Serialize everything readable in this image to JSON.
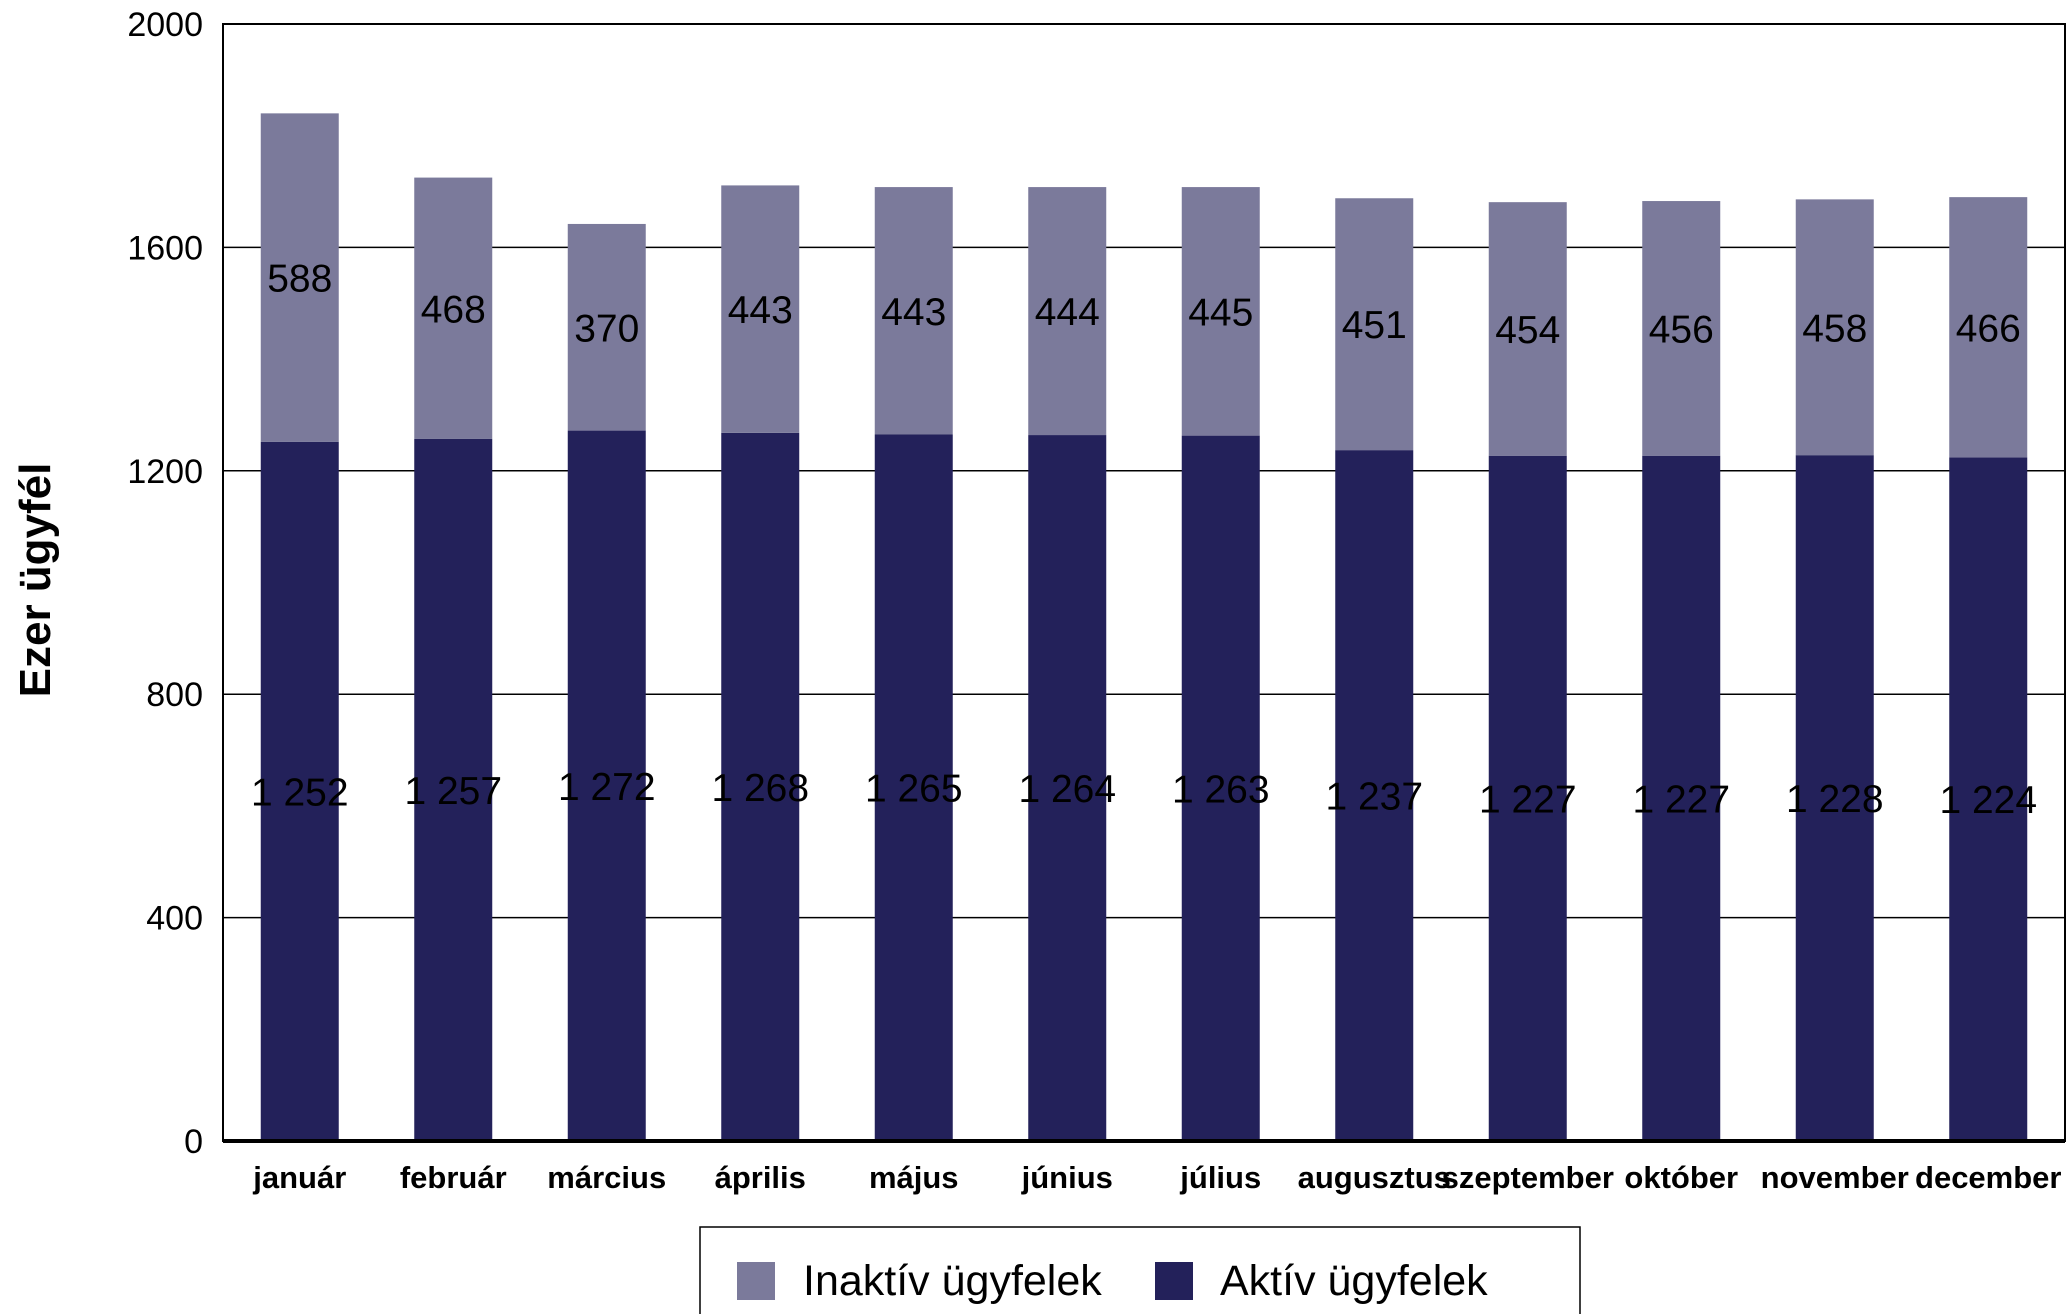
{
  "chart_data": {
    "type": "bar",
    "stacked": true,
    "categories": [
      "január",
      "február",
      "március",
      "április",
      "május",
      "június",
      "július",
      "augusztus",
      "szeptember",
      "október",
      "november",
      "december"
    ],
    "series": [
      {
        "name": "Aktív ügyfelek",
        "color": "#23215a",
        "values": [
          1252,
          1257,
          1272,
          1268,
          1265,
          1264,
          1263,
          1237,
          1227,
          1227,
          1228,
          1224
        ],
        "labels": [
          "1 252",
          "1 257",
          "1 272",
          "1 268",
          "1 265",
          "1 264",
          "1 263",
          "1 237",
          "1 227",
          "1 227",
          "1 228",
          "1 224"
        ]
      },
      {
        "name": "Inaktív ügyfelek",
        "color": "#7b7a9b",
        "values": [
          588,
          468,
          370,
          443,
          443,
          444,
          445,
          451,
          454,
          456,
          458,
          466
        ],
        "labels": [
          "588",
          "468",
          "370",
          "443",
          "443",
          "444",
          "445",
          "451",
          "454",
          "456",
          "458",
          "466"
        ]
      }
    ],
    "ylabel": "Ezer ügyfél",
    "xlabel": "",
    "ylim": [
      0,
      2000
    ],
    "yticks": [
      0,
      400,
      800,
      1200,
      1600,
      2000
    ],
    "grid": true,
    "legend_position": "bottom",
    "legend_order": [
      "Inaktív ügyfelek",
      "Aktív ügyfelek"
    ]
  }
}
